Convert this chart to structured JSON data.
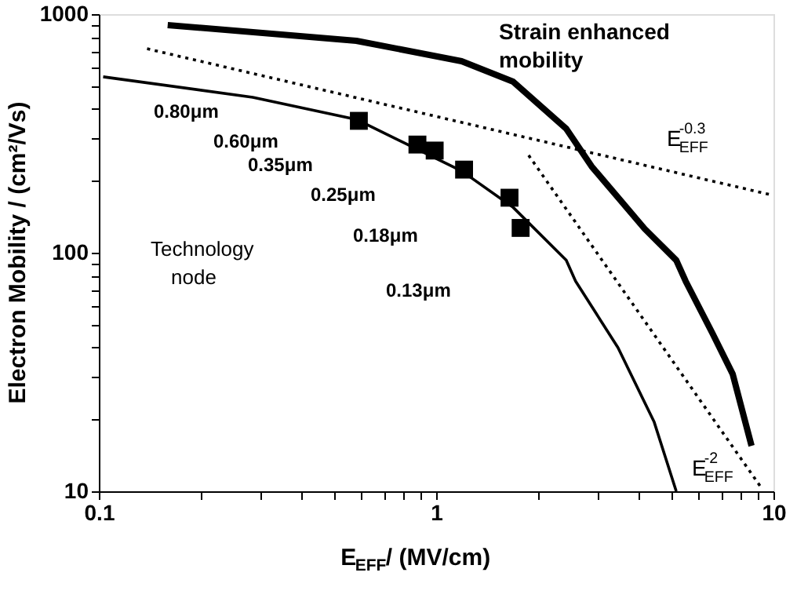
{
  "chart_data": {
    "type": "line",
    "xlabel": "E$_{EFF}$/  (MV/cm)",
    "ylabel": "Electron Mobility /  (cm²/Vs)",
    "log": "xy",
    "grid": false,
    "line_style": "solid",
    "xlim": [
      0.1,
      10
    ],
    "xticks": [
      0.1,
      {
        "value": 0.2,
        "label": null
      },
      {
        "value": 0.3,
        "label": null
      },
      {
        "value": 0.4,
        "label": null
      },
      {
        "value": 0.5,
        "label": null
      },
      {
        "value": 0.6,
        "label": null
      },
      {
        "value": 0.7,
        "label": null
      },
      {
        "value": 0.8,
        "label": null
      },
      {
        "value": 0.9,
        "label": null
      },
      1,
      {
        "value": 2,
        "label": null
      },
      {
        "value": 3,
        "label": null
      },
      {
        "value": 4,
        "label": null
      },
      {
        "value": 5,
        "label": null
      },
      {
        "value": 6,
        "label": null
      },
      {
        "value": 7,
        "label": null
      },
      {
        "value": 8,
        "label": null
      },
      {
        "value": 9,
        "label": null
      },
      10
    ],
    "ylim": [
      10,
      1000
    ],
    "yticks": [
      10,
      {
        "value": 20,
        "label": null
      },
      {
        "value": 30,
        "label": null
      },
      {
        "value": 40,
        "label": null
      },
      {
        "value": 50,
        "label": null
      },
      {
        "value": 60,
        "label": null
      },
      {
        "value": 70,
        "label": null
      },
      {
        "value": 80,
        "label": null
      },
      {
        "value": 90,
        "label": null
      },
      100,
      {
        "value": 200,
        "label": null
      },
      {
        "value": 300,
        "label": null
      },
      {
        "value": 400,
        "label": null
      },
      {
        "value": 500,
        "label": null
      },
      {
        "value": 600,
        "label": null
      },
      {
        "value": 700,
        "label": null
      },
      {
        "value": 800,
        "label": null
      },
      {
        "value": 900,
        "label": null
      },
      1000
    ],
    "series": [
      {
        "color": "#000000",
        "x": [
          0.16,
          0.58,
          1.19,
          1.69,
          2.43,
          2.89,
          4.15,
          5.15,
          5.49,
          6.59,
          7.57,
          8.61
        ],
        "values": [
          900,
          773,
          635,
          521,
          331,
          230,
          126,
          93,
          76,
          46,
          31,
          15.5
        ]
      },
      {
        "color": "#000000",
        "x": [
          0.103,
          0.286,
          0.58,
          1.19,
          1.69,
          2.43,
          2.59,
          3.46,
          4.43,
          5.15
        ],
        "values": [
          546,
          448,
          362,
          220,
          155,
          93,
          76,
          40,
          19.5,
          10
        ]
      },
      {
        "type": "scatter",
        "marker": "square",
        "color": "#000000",
        "x": [
          0.59,
          0.88,
          0.99,
          1.21,
          1.65,
          1.78
        ],
        "values": [
          357,
          284,
          268,
          223,
          170,
          127
        ]
      },
      {
        "type": "line",
        "line_style": "dotted",
        "color": "#000000",
        "x": [
          0.139,
          9.8
        ],
        "values": [
          716,
          175
        ]
      },
      {
        "type": "line",
        "line_style": "dotted",
        "color": "#000000",
        "x": [
          1.88,
          9.27
        ],
        "values": [
          256,
          10.2
        ]
      }
    ],
    "annotations": [
      "0.80μm",
      "0.60μm",
      "0.35μm",
      "0.25μm",
      "0.18μm",
      "0.13μm",
      "Strain enhanced",
      "mobility",
      "Technology",
      "node",
      "E$_{EFF}$$^{-0.3}$",
      "E$_{EFF}$$^{-2}$"
    ]
  }
}
